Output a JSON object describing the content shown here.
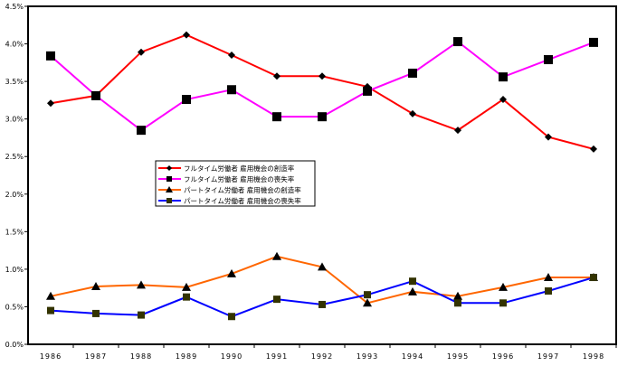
{
  "chart_data": {
    "type": "line",
    "x": [
      "1986",
      "1987",
      "1988",
      "1989",
      "1990",
      "1991",
      "1992",
      "1993",
      "1994",
      "1995",
      "1996",
      "1997",
      "1998"
    ],
    "ylim": [
      0,
      4.5
    ],
    "yticks": [
      "0.0%",
      "0.5%",
      "1.0%",
      "1.5%",
      "2.0%",
      "2.5%",
      "3.0%",
      "3.5%",
      "4.0%",
      "4.5%"
    ],
    "ytick_values": [
      0,
      0.5,
      1.0,
      1.5,
      2.0,
      2.5,
      3.0,
      3.5,
      4.0,
      4.5
    ],
    "grid": false,
    "legend_placement": "center-left",
    "series": [
      {
        "name": "フルタイム労働者 雇用機会の創造率",
        "color": "#ff0000",
        "marker": "diamond",
        "marker_color": "#000000",
        "values": [
          3.21,
          3.31,
          3.89,
          4.12,
          3.85,
          3.57,
          3.57,
          3.43,
          3.07,
          2.85,
          3.26,
          2.76,
          2.6
        ]
      },
      {
        "name": "フルタイム労働者 雇用機会の喪失率",
        "color": "#ff00ff",
        "marker": "square",
        "marker_color": "#000000",
        "values": [
          3.84,
          3.31,
          2.85,
          3.26,
          3.39,
          3.03,
          3.03,
          3.37,
          3.61,
          4.03,
          3.56,
          3.79,
          4.02
        ]
      },
      {
        "name": "パートタイム労働者 雇用機会の創造率",
        "color": "#ff6600",
        "marker": "triangle",
        "marker_color": "#000000",
        "values": [
          0.64,
          0.77,
          0.79,
          0.76,
          0.94,
          1.17,
          1.03,
          0.55,
          0.7,
          0.64,
          0.76,
          0.89,
          0.89
        ]
      },
      {
        "name": "パートタイム労働者 雇用機会の喪失率",
        "color": "#0000ff",
        "marker": "square",
        "marker_color": "#333300",
        "values": [
          0.45,
          0.41,
          0.39,
          0.63,
          0.37,
          0.6,
          0.53,
          0.66,
          0.84,
          0.55,
          0.55,
          0.71,
          0.89
        ]
      }
    ]
  }
}
